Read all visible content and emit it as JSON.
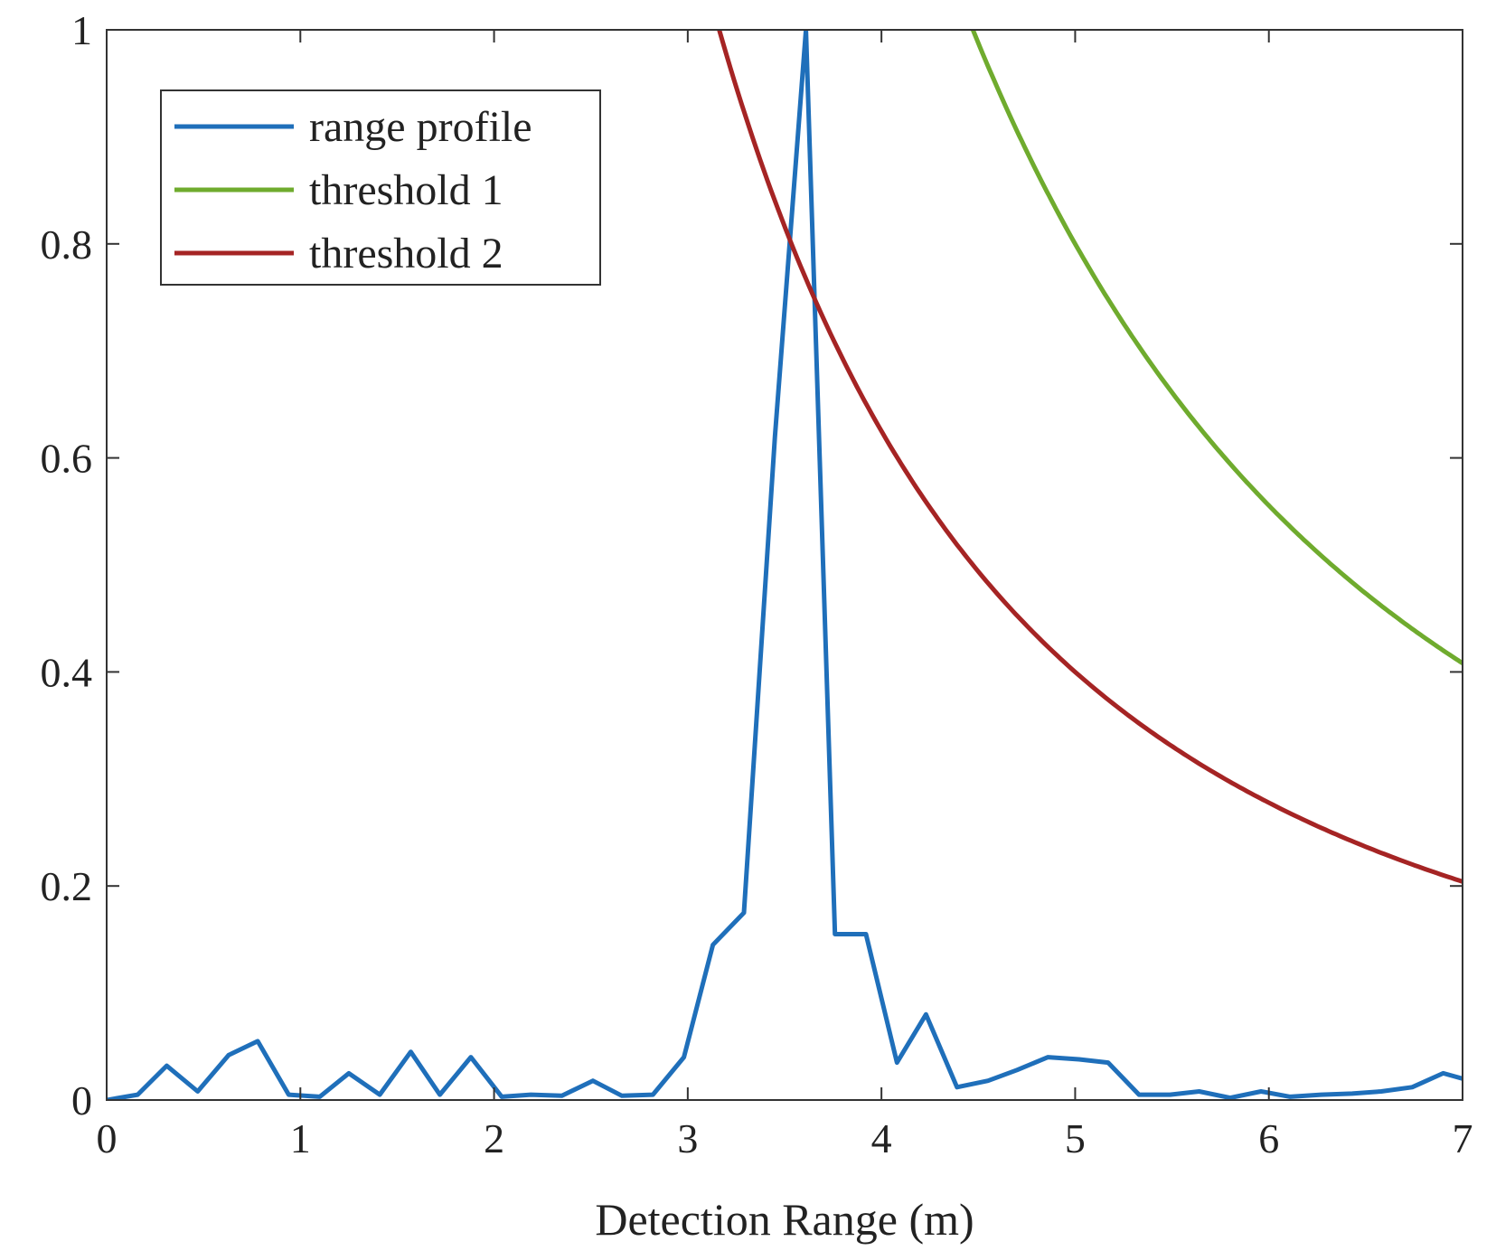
{
  "chart_data": {
    "type": "line",
    "title": "",
    "xlabel": "Detection Range (m)",
    "ylabel": "",
    "xlim": [
      0,
      7
    ],
    "ylim": [
      0,
      1
    ],
    "xticks": [
      "0",
      "1",
      "2",
      "3",
      "4",
      "5",
      "6",
      "7"
    ],
    "yticks": [
      "0",
      "0.2",
      "0.4",
      "0.6",
      "0.8",
      "1"
    ],
    "grid": false,
    "legend_position": "top-left",
    "series": [
      {
        "name": "range profile",
        "color": "#1f6fba",
        "x": [
          0,
          0.16,
          0.31,
          0.47,
          0.63,
          0.78,
          0.94,
          1.1,
          1.25,
          1.41,
          1.57,
          1.72,
          1.88,
          2.04,
          2.19,
          2.35,
          2.51,
          2.66,
          2.82,
          2.98,
          3.13,
          3.29,
          3.45,
          3.61,
          3.76,
          3.92,
          4.08,
          4.23,
          4.39,
          4.55,
          4.7,
          4.86,
          5.02,
          5.17,
          5.33,
          5.49,
          5.64,
          5.8,
          5.96,
          6.11,
          6.27,
          6.43,
          6.58,
          6.74,
          6.9,
          7.0
        ],
        "y": [
          0.0,
          0.005,
          0.032,
          0.008,
          0.042,
          0.055,
          0.005,
          0.003,
          0.025,
          0.005,
          0.045,
          0.005,
          0.04,
          0.003,
          0.005,
          0.004,
          0.018,
          0.004,
          0.005,
          0.04,
          0.145,
          0.175,
          0.62,
          1.0,
          0.155,
          0.155,
          0.035,
          0.08,
          0.012,
          0.018,
          0.028,
          0.04,
          0.038,
          0.035,
          0.005,
          0.005,
          0.008,
          0.002,
          0.008,
          0.003,
          0.005,
          0.006,
          0.008,
          0.012,
          0.025,
          0.02
        ]
      },
      {
        "name": "threshold 1",
        "color": "#6fab2e",
        "function": "k / x^2",
        "k": 20.0,
        "x_start": 4.472,
        "x_end": 7.0
      },
      {
        "name": "threshold 2",
        "color": "#a52424",
        "function": "k / x^2",
        "k": 10.0,
        "x_start": 3.162,
        "x_end": 7.0
      }
    ]
  }
}
